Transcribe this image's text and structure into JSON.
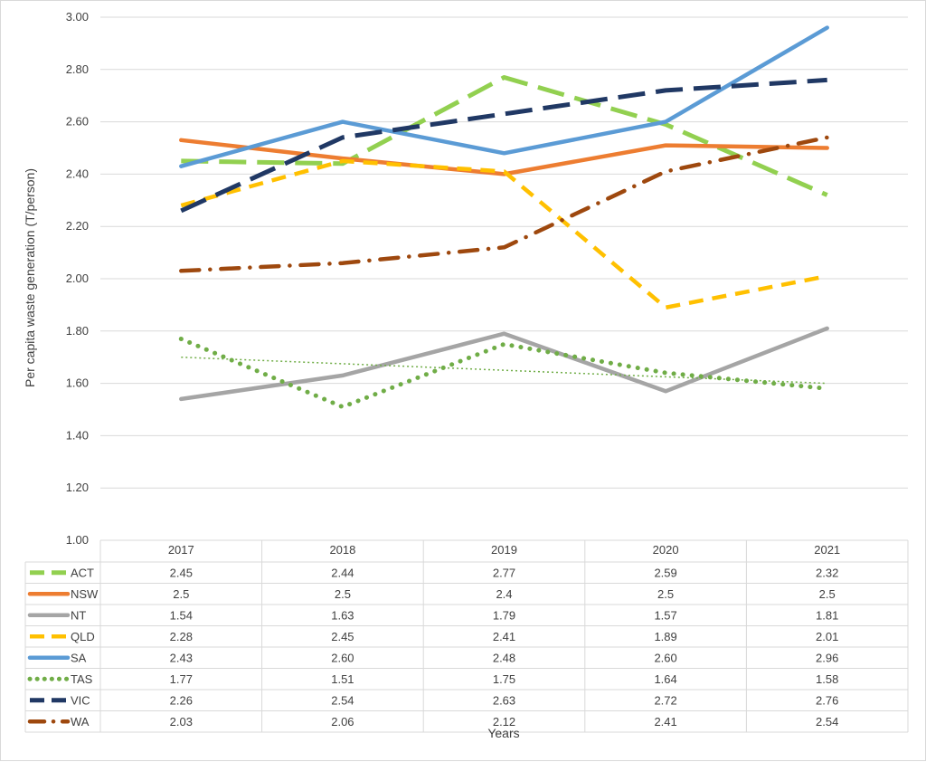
{
  "chart_data": {
    "type": "line",
    "title": "",
    "xlabel": "Years",
    "ylabel": "Per capita waste generation (T/person)",
    "ylim": [
      1.0,
      3.0
    ],
    "yticks": [
      "1.00",
      "1.20",
      "1.40",
      "1.60",
      "1.80",
      "2.00",
      "2.20",
      "2.40",
      "2.60",
      "2.80",
      "3.00"
    ],
    "grid": true,
    "legend": "data-table",
    "categories": [
      "2017",
      "2018",
      "2019",
      "2020",
      "2021"
    ],
    "series": [
      {
        "name": "ACT",
        "color": "#92d050",
        "style": "long-dash",
        "values": [
          2.45,
          2.44,
          2.77,
          2.59,
          2.32
        ],
        "labels": [
          "2.45",
          "2.44",
          "2.77",
          "2.59",
          "2.32"
        ]
      },
      {
        "name": "NSW",
        "color": "#ed7d31",
        "style": "solid",
        "values": [
          2.53,
          2.46,
          2.4,
          2.51,
          2.5
        ],
        "labels": [
          "2.5",
          "2.5",
          "2.4",
          "2.5",
          "2.5"
        ]
      },
      {
        "name": "NT",
        "color": "#a5a5a5",
        "style": "solid",
        "values": [
          1.54,
          1.63,
          1.79,
          1.57,
          1.81
        ],
        "labels": [
          "1.54",
          "1.63",
          "1.79",
          "1.57",
          "1.81"
        ]
      },
      {
        "name": "QLD",
        "color": "#ffc000",
        "style": "dash",
        "values": [
          2.28,
          2.45,
          2.41,
          1.89,
          2.01
        ],
        "labels": [
          "2.28",
          "2.45",
          "2.41",
          "1.89",
          "2.01"
        ]
      },
      {
        "name": "SA",
        "color": "#5b9bd5",
        "style": "solid",
        "values": [
          2.43,
          2.6,
          2.48,
          2.6,
          2.96
        ],
        "labels": [
          "2.43",
          "2.60",
          "2.48",
          "2.60",
          "2.96"
        ]
      },
      {
        "name": "TAS",
        "color": "#70ad47",
        "style": "dot",
        "values": [
          1.77,
          1.51,
          1.75,
          1.64,
          1.58
        ],
        "labels": [
          "1.77",
          "1.51",
          "1.75",
          "1.64",
          "1.58"
        ]
      },
      {
        "name": "VIC",
        "color": "#203864",
        "style": "long-dash",
        "values": [
          2.26,
          2.54,
          2.63,
          2.72,
          2.76
        ],
        "labels": [
          "2.26",
          "2.54",
          "2.63",
          "2.72",
          "2.76"
        ]
      },
      {
        "name": "WA",
        "color": "#9e480e",
        "style": "dash-dot",
        "values": [
          2.03,
          2.06,
          2.12,
          2.41,
          2.54
        ],
        "labels": [
          "2.03",
          "2.06",
          "2.12",
          "2.41",
          "2.54"
        ]
      }
    ],
    "trendline": {
      "series": "TAS",
      "type": "linear",
      "color": "#70ad47",
      "values": [
        1.7,
        1.6
      ]
    }
  }
}
